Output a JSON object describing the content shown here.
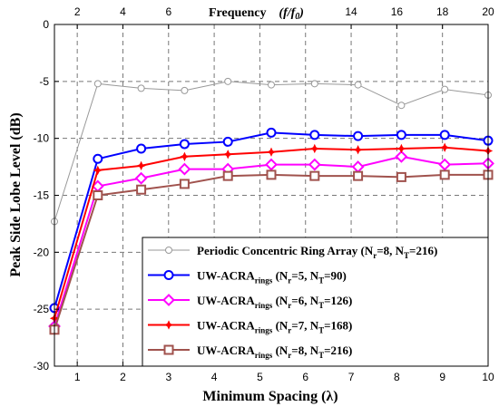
{
  "chart_data": {
    "type": "line",
    "ylabel": "Peak Side Lobe Level (dB)",
    "xlabel": "Minimum Spacing (λ)",
    "top_axis_label": "Frequency",
    "top_axis_unit": "(f/f",
    "top_axis_unit_sub": "0",
    "top_axis_unit_close": ")",
    "xlim": [
      0.5,
      10
    ],
    "ylim": [
      -30,
      0
    ],
    "xticks": [
      1,
      2,
      3,
      4,
      5,
      6,
      7,
      8,
      9,
      10
    ],
    "yticks": [
      0,
      -5,
      -10,
      -15,
      -20,
      -25,
      -30
    ],
    "top_ticks": [
      {
        "label": "2",
        "x": 1
      },
      {
        "label": "4",
        "x": 2
      },
      {
        "label": "6",
        "x": 3
      },
      {
        "label": "14",
        "x": 7
      },
      {
        "label": "16",
        "x": 8
      },
      {
        "label": "18",
        "x": 9
      },
      {
        "label": "20",
        "x": 10
      }
    ],
    "grid": true,
    "legend_position": "bottom-right",
    "x": [
      0.5,
      1.45,
      2.4,
      3.35,
      4.3,
      5.25,
      6.2,
      7.15,
      8.1,
      9.05,
      10
    ],
    "series": [
      {
        "name": "Periodic Concentric Ring Array (N",
        "legend_parts": [
          "Periodic Concentric Ring Array (N",
          "r",
          "=8, N",
          "T",
          "=216)"
        ],
        "color": "#999999",
        "marker": "circle-small",
        "values": [
          -17.3,
          -5.2,
          -5.6,
          -5.8,
          -5.0,
          -5.3,
          -5.2,
          -5.3,
          -7.1,
          -5.7,
          -6.2
        ]
      },
      {
        "name": "UW-ACRA",
        "legend_parts": [
          "UW-ACRA",
          "rings",
          " (N",
          "r",
          "=5, N",
          "T",
          "=90)"
        ],
        "color": "#0000ff",
        "marker": "circle",
        "values": [
          -24.9,
          -11.8,
          -10.9,
          -10.5,
          -10.3,
          -9.5,
          -9.7,
          -9.8,
          -9.7,
          -9.7,
          -10.2
        ]
      },
      {
        "name": "UW-ACRA",
        "legend_parts": [
          "UW-ACRA",
          "rings",
          " (N",
          "r",
          "=6, N",
          "T",
          "=126)"
        ],
        "color": "#ff00ff",
        "marker": "diamond",
        "values": [
          -26.5,
          -14.2,
          -13.5,
          -12.7,
          -12.7,
          -12.3,
          -12.3,
          -12.5,
          -11.6,
          -12.3,
          -12.2
        ]
      },
      {
        "name": "UW-ACRA",
        "legend_parts": [
          "UW-ACRA",
          "rings",
          " (N",
          "r",
          "=7, N",
          "T",
          "=168)"
        ],
        "color": "#ff0000",
        "marker": "star",
        "values": [
          -25.8,
          -12.8,
          -12.4,
          -11.6,
          -11.4,
          -11.2,
          -10.9,
          -11.0,
          -10.9,
          -10.8,
          -11.1
        ]
      },
      {
        "name": "UW-ACRA",
        "legend_parts": [
          "UW-ACRA",
          "rings",
          " (N",
          "r",
          "=8, N",
          "T",
          "=216)"
        ],
        "color": "#a0524d",
        "marker": "square",
        "values": [
          -26.8,
          -15.0,
          -14.5,
          -14.0,
          -13.3,
          -13.2,
          -13.3,
          -13.3,
          -13.4,
          -13.2,
          -13.2
        ]
      }
    ]
  }
}
